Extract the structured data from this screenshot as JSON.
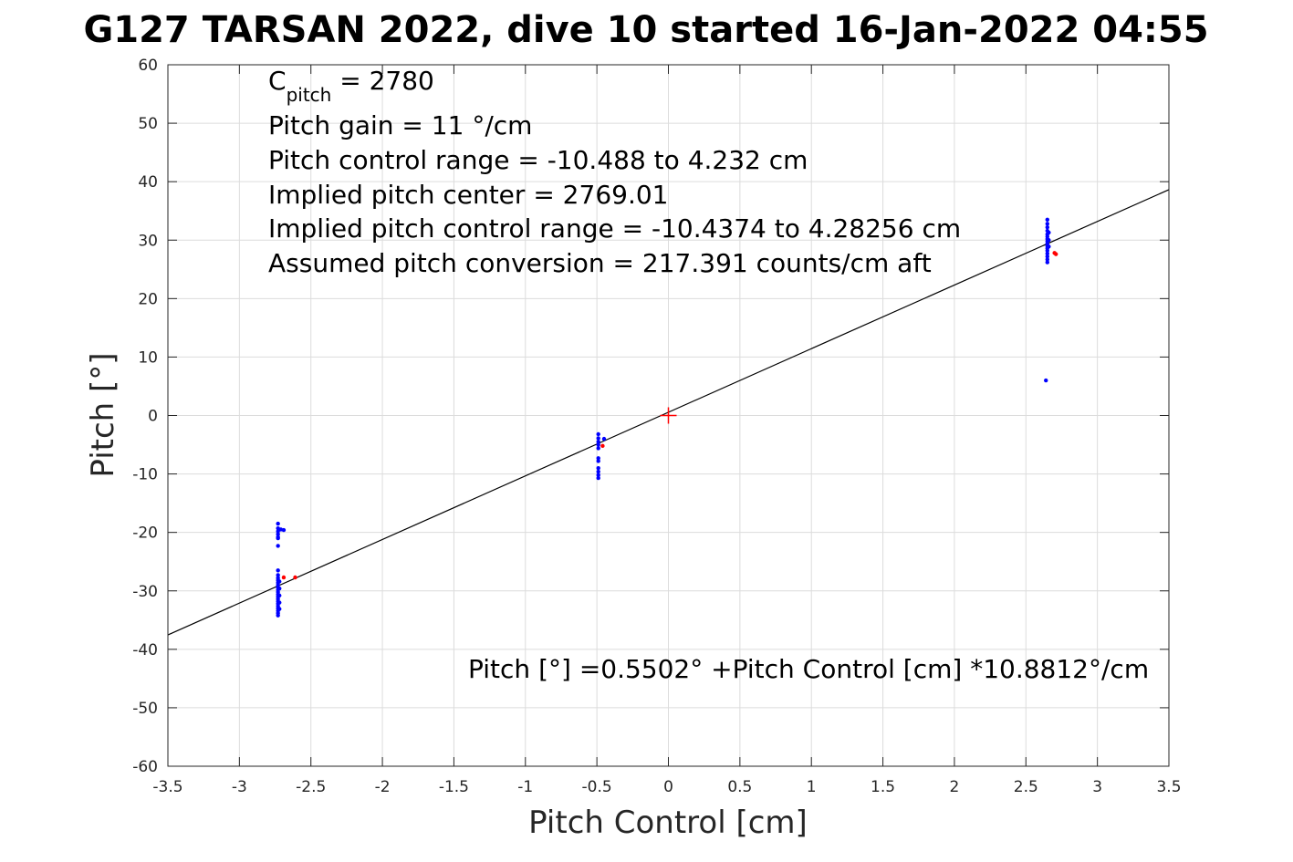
{
  "chart_data": {
    "type": "scatter",
    "title": "G127 TARSAN 2022, dive 10 started 16-Jan-2022 04:55",
    "xlabel": "Pitch Control [cm]",
    "ylabel": "Pitch [°]",
    "xlim": [
      -3.5,
      3.5
    ],
    "ylim": [
      -60,
      60
    ],
    "xticks": [
      -3.5,
      -3,
      -2.5,
      -2,
      -1.5,
      -1,
      -0.5,
      0,
      0.5,
      1,
      1.5,
      2,
      2.5,
      3,
      3.5
    ],
    "yticks": [
      -60,
      -50,
      -40,
      -30,
      -20,
      -10,
      0,
      10,
      20,
      30,
      40,
      50,
      60
    ],
    "xtick_labels": [
      "-3.5",
      "-3",
      "-2.5",
      "-2",
      "-1.5",
      "-1",
      "-0.5",
      "0",
      "0.5",
      "1",
      "1.5",
      "2",
      "2.5",
      "3",
      "3.5"
    ],
    "ytick_labels": [
      "-60",
      "-50",
      "-40",
      "-30",
      "-20",
      "-10",
      "0",
      "10",
      "20",
      "30",
      "40",
      "50",
      "60"
    ],
    "grid": true,
    "colors": {
      "blue": "#0000ff",
      "red": "#ff0000",
      "line": "#000000"
    },
    "annotations": {
      "c_pitch_base": "C",
      "c_pitch_sub": "pitch",
      "c_pitch_rest": " = 2780",
      "line2": "Pitch gain = 11 °/cm",
      "line3": "Pitch control range = -10.488 to 4.232 cm",
      "line4": "Implied pitch center = 2769.01",
      "line5": "Implied pitch control range = -10.4374 to 4.28256 cm",
      "line6": "Assumed pitch conversion = 217.391 counts/cm aft",
      "fit": "Pitch [°] =0.5502° +Pitch Control [cm] *10.8812°/cm"
    },
    "fit_line": {
      "intercept": 0.5502,
      "slope": 10.8812
    },
    "center_marker": {
      "x": 0,
      "y": 0
    },
    "series": [
      {
        "color": "blue",
        "points": [
          [
            -2.73,
            -18.5
          ],
          [
            -2.73,
            -19.3
          ],
          [
            -2.73,
            -19.8
          ],
          [
            -2.73,
            -20.3
          ],
          [
            -2.73,
            -20.8
          ],
          [
            -2.73,
            -21.0
          ],
          [
            -2.73,
            -22.3
          ],
          [
            -2.71,
            -19.5
          ],
          [
            -2.69,
            -19.6
          ],
          [
            -2.73,
            -26.5
          ],
          [
            -2.73,
            -27.3
          ],
          [
            -2.73,
            -27.8
          ],
          [
            -2.73,
            -28.2
          ],
          [
            -2.73,
            -28.6
          ],
          [
            -2.73,
            -29.0
          ],
          [
            -2.73,
            -29.4
          ],
          [
            -2.73,
            -29.8
          ],
          [
            -2.73,
            -30.2
          ],
          [
            -2.73,
            -30.6
          ],
          [
            -2.73,
            -31.0
          ],
          [
            -2.73,
            -31.4
          ],
          [
            -2.73,
            -31.8
          ],
          [
            -2.73,
            -32.2
          ],
          [
            -2.73,
            -32.6
          ],
          [
            -2.73,
            -33.0
          ],
          [
            -2.73,
            -33.4
          ],
          [
            -2.73,
            -33.8
          ],
          [
            -2.73,
            -34.2
          ],
          [
            -2.72,
            -28.4
          ],
          [
            -2.72,
            -29.6
          ],
          [
            -2.72,
            -30.8
          ],
          [
            -2.72,
            -32.0
          ],
          [
            -2.72,
            -33.1
          ],
          [
            -0.49,
            -3.2
          ],
          [
            -0.49,
            -3.9
          ],
          [
            -0.49,
            -4.5
          ],
          [
            -0.49,
            -5.0
          ],
          [
            -0.49,
            -5.6
          ],
          [
            -0.49,
            -7.3
          ],
          [
            -0.49,
            -7.8
          ],
          [
            -0.49,
            -9.0
          ],
          [
            -0.49,
            -9.6
          ],
          [
            -0.49,
            -10.2
          ],
          [
            -0.49,
            -10.7
          ],
          [
            -0.45,
            -4.0
          ],
          [
            2.65,
            33.5
          ],
          [
            2.65,
            32.8
          ],
          [
            2.65,
            32.2
          ],
          [
            2.65,
            31.6
          ],
          [
            2.65,
            31.0
          ],
          [
            2.65,
            30.6
          ],
          [
            2.65,
            30.2
          ],
          [
            2.65,
            29.8
          ],
          [
            2.65,
            29.4
          ],
          [
            2.65,
            29.0
          ],
          [
            2.65,
            28.6
          ],
          [
            2.65,
            28.2
          ],
          [
            2.65,
            27.7
          ],
          [
            2.65,
            27.2
          ],
          [
            2.65,
            26.7
          ],
          [
            2.65,
            26.2
          ],
          [
            2.66,
            31.3
          ],
          [
            2.66,
            30.0
          ],
          [
            2.66,
            28.9
          ],
          [
            2.64,
            6.0
          ]
        ]
      },
      {
        "color": "red",
        "points": [
          [
            -2.69,
            -27.7
          ],
          [
            -2.61,
            -27.7
          ],
          [
            -0.46,
            -5.2
          ],
          [
            2.7,
            27.8
          ],
          [
            2.71,
            27.6
          ]
        ]
      }
    ]
  }
}
